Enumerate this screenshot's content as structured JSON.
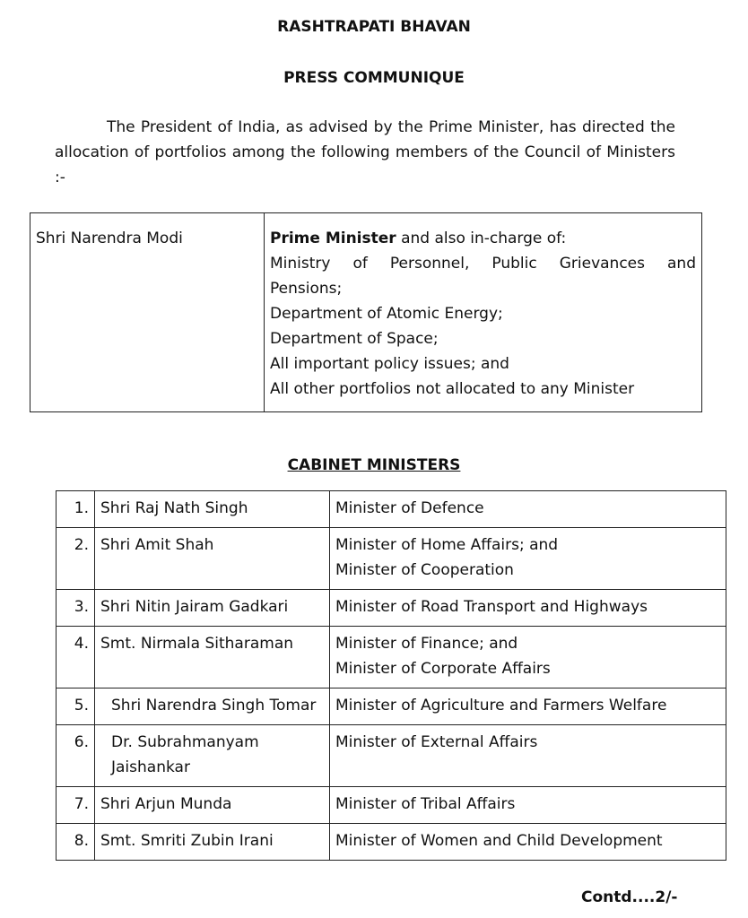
{
  "header": {
    "title": "RASHTRAPATI BHAVAN",
    "subtitle": "PRESS COMMUNIQUE"
  },
  "intro": "The President of India, as advised by the Prime Minister, has directed the allocation of portfolios among the following members of the Council of Ministers :-",
  "pm": {
    "name": "Shri Narendra Modi",
    "role": "Prime Minister",
    "role_suffix": " and also in-charge of:",
    "portfolios": [
      "Ministry of Personnel, Public Grievances and",
      "Pensions;",
      "Department of Atomic Energy;",
      "Department of Space;",
      "All important policy issues; and",
      "All other portfolios not allocated to any Minister"
    ]
  },
  "cabinet": {
    "heading": "CABINET MINISTERS",
    "rows": [
      {
        "num": "1.",
        "name": "Shri Raj Nath Singh",
        "portfolio": [
          "Minister of Defence"
        ]
      },
      {
        "num": "2.",
        "name": "Shri Amit Shah",
        "portfolio": [
          "Minister of Home Affairs; and",
          "Minister of Cooperation"
        ]
      },
      {
        "num": "3.",
        "name": "Shri Nitin Jairam Gadkari",
        "portfolio": [
          "Minister of Road Transport and Highways"
        ]
      },
      {
        "num": "4.",
        "name": "Smt. Nirmala Sitharaman",
        "portfolio": [
          "Minister of Finance; and",
          "Minister of Corporate Affairs"
        ]
      },
      {
        "num": "5.",
        "name": "Shri Narendra Singh Tomar",
        "portfolio": [
          "Minister of Agriculture and Farmers Welfare"
        ]
      },
      {
        "num": "6.",
        "name": "Dr. Subrahmanyam Jaishankar",
        "portfolio": [
          "Minister of External Affairs"
        ]
      },
      {
        "num": "7.",
        "name": "Shri Arjun Munda",
        "portfolio": [
          "Minister of Tribal Affairs"
        ]
      },
      {
        "num": "8.",
        "name": "Smt. Smriti Zubin Irani",
        "portfolio": [
          "Minister of Women and Child Development"
        ]
      }
    ]
  },
  "footer": {
    "contd": "Contd....2/-"
  }
}
